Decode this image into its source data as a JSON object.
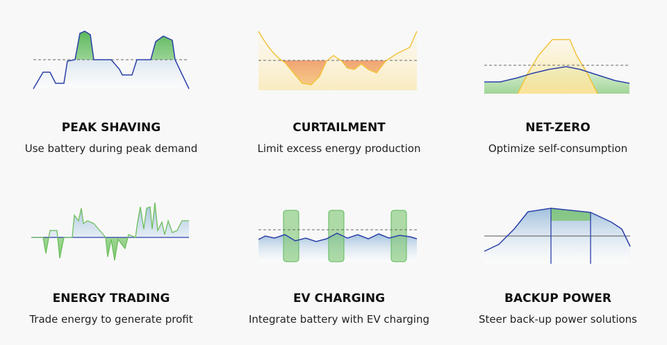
{
  "cards": [
    {
      "title": "PEAK SHAVING",
      "description": "Use battery during peak demand"
    },
    {
      "title": "CURTAILMENT",
      "description": "Limit excess energy production"
    },
    {
      "title": "NET-ZERO",
      "description": "Optimize self-consumption"
    },
    {
      "title": "ENERGY TRADING",
      "description": "Trade energy to generate profit"
    },
    {
      "title": "EV CHARGING",
      "description": "Integrate battery with EV charging"
    },
    {
      "title": "BACKUP POWER",
      "description": "Steer back-up power solutions"
    }
  ]
}
